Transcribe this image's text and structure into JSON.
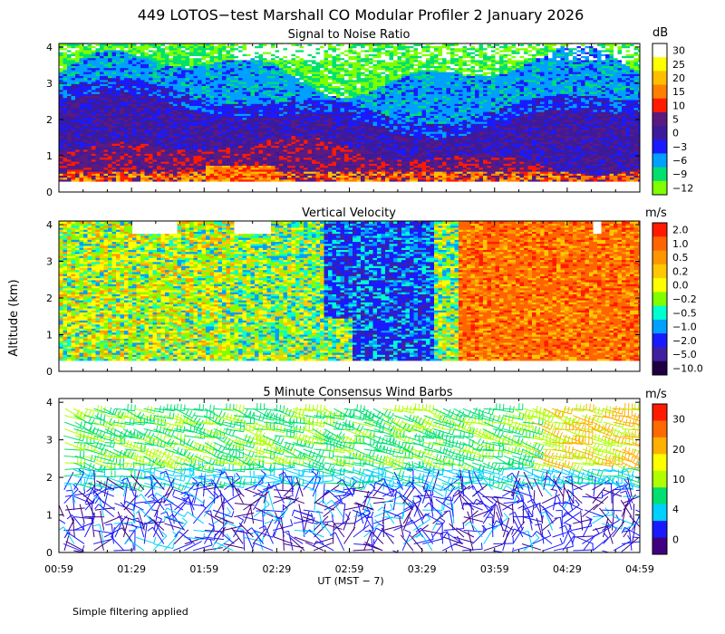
{
  "title": "449 LOTOS−test Marshall CO Modular Profiler  2 January 2026",
  "ylabel": "Altitude (km)",
  "xlabel": "UT  (MST − 7)",
  "footnote": "Simple filtering applied",
  "x_ticks": [
    "00:59",
    "01:29",
    "01:59",
    "02:29",
    "02:59",
    "03:29",
    "03:59",
    "04:29",
    "04:59"
  ],
  "y_ticks": [
    "0",
    "1",
    "2",
    "3",
    "4"
  ],
  "chart_data": [
    {
      "type": "heatmap",
      "title": "Signal to Noise Ratio",
      "xlabel": "UT  (MST − 7)",
      "ylabel": "Altitude (km)",
      "ylim": [
        0,
        4.1
      ],
      "colorbar": {
        "unit": "dB",
        "labels": [
          "30",
          "25",
          "20",
          "15",
          "10",
          "5",
          "0",
          "−3",
          "−6",
          "−9",
          "−12"
        ],
        "colors": [
          "#ffffff",
          "#ffff00",
          "#ffbf00",
          "#ff7f00",
          "#ff1a00",
          "#5a1a80",
          "#3c1a9c",
          "#1a1aff",
          "#00a0ff",
          "#00e070",
          "#80ff00"
        ]
      }
    },
    {
      "type": "heatmap",
      "title": "Vertical Velocity",
      "xlabel": "UT  (MST − 7)",
      "ylabel": "Altitude (km)",
      "ylim": [
        0,
        4.1
      ],
      "colorbar": {
        "unit": "m/s",
        "labels": [
          "2.0",
          "1.0",
          "0.5",
          "0.2",
          "0.0",
          "−0.2",
          "−0.5",
          "−1.0",
          "−2.0",
          "−5.0",
          "−10.0"
        ],
        "colors": [
          "#ff1a00",
          "#ff6400",
          "#ff9600",
          "#ffc800",
          "#ffff00",
          "#80ff00",
          "#00ffd0",
          "#00a0ff",
          "#1a1aff",
          "#4020a0",
          "#200040"
        ]
      }
    },
    {
      "type": "scatter",
      "title": "5 Minute Consensus Wind Barbs",
      "xlabel": "UT  (MST − 7)",
      "ylabel": "Altitude (km)",
      "ylim": [
        0,
        4.1
      ],
      "colorbar": {
        "unit": "m/s",
        "labels": [
          "30",
          "20",
          "10",
          "4",
          "0"
        ],
        "colors": [
          "#ff1a00",
          "#ff6a00",
          "#ffb000",
          "#ffff00",
          "#b0ff00",
          "#00e070",
          "#00d0ff",
          "#1a1aff",
          "#400080"
        ]
      }
    }
  ]
}
